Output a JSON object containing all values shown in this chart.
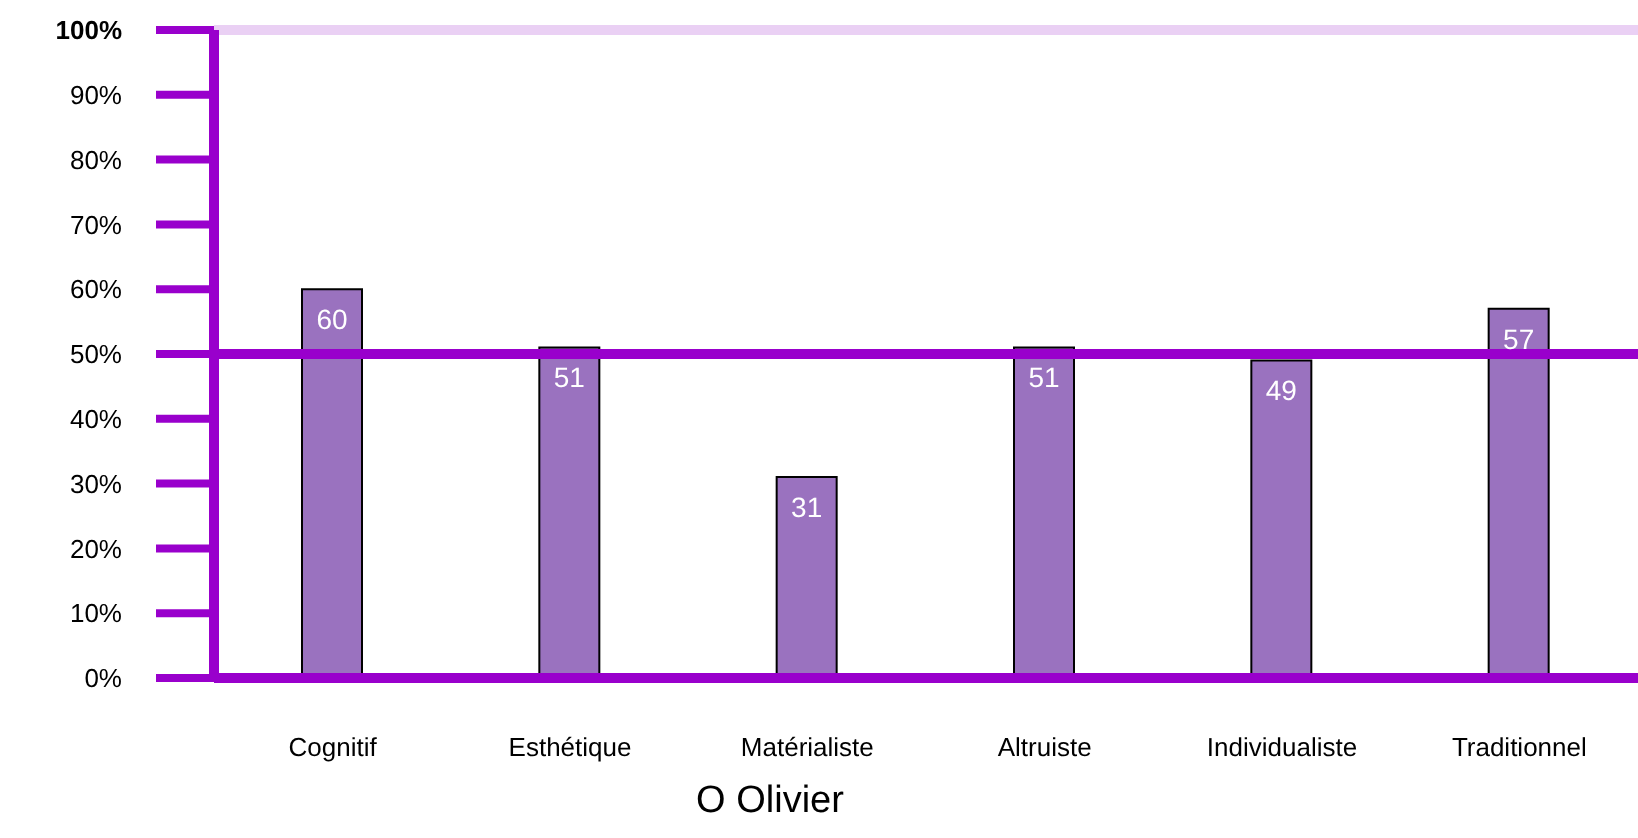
{
  "chart_data": {
    "type": "bar",
    "title": "O Olivier",
    "categories": [
      "Cognitif",
      "Esthétique",
      "Matérialiste",
      "Altruiste",
      "Individualiste",
      "Traditionnel"
    ],
    "values": [
      60,
      51,
      31,
      51,
      49,
      57
    ],
    "color": "#9a72bf",
    "data_labels": true,
    "ylim": [
      0,
      100
    ],
    "yticks": [
      {
        "value": 0,
        "label": "0%"
      },
      {
        "value": 10,
        "label": "10%"
      },
      {
        "value": 20,
        "label": "20%"
      },
      {
        "value": 30,
        "label": "30%"
      },
      {
        "value": 40,
        "label": "40%"
      },
      {
        "value": 50,
        "label": "50%"
      },
      {
        "value": 60,
        "label": "60%"
      },
      {
        "value": 70,
        "label": "70%"
      },
      {
        "value": 80,
        "label": "80%"
      },
      {
        "value": 90,
        "label": "90%"
      },
      {
        "value": 100,
        "label": "100%"
      }
    ],
    "ref_lines": [
      {
        "axis": "y",
        "value": 50,
        "color": "#9900cc"
      },
      {
        "axis": "y",
        "value": 100,
        "color": "#ead0f4"
      }
    ]
  }
}
